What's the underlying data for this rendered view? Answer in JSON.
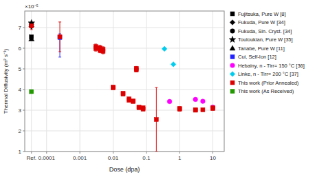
{
  "chart_data": {
    "type": "scatter",
    "x_label": "Dose (dpa)",
    "y_label": "Thermal Diffusivity (m² s⁻¹)",
    "annotations": [
      "×10⁻⁵"
    ],
    "log": "x",
    "grid": true,
    "legend": "right",
    "xlim": [
      2.2e-05,
      22
    ],
    "xticks": [
      {
        "value": 3.5e-05,
        "label": "Ref."
      },
      0.0001,
      0.001,
      0.01,
      0.1,
      1,
      10
    ],
    "ylim": [
      1e-05,
      7.8e-05
    ],
    "yticks": [
      {
        "value": 1e-05,
        "label": "1"
      },
      {
        "value": 2e-05,
        "label": "2"
      },
      {
        "value": 3e-05,
        "label": "3"
      },
      {
        "value": 4e-05,
        "label": "4"
      },
      {
        "value": 5e-05,
        "label": "5"
      },
      {
        "value": 6e-05,
        "label": "6"
      },
      {
        "value": 7e-05,
        "label": "7"
      }
    ],
    "series": [
      {
        "name": "Fujitsuka, Pure W [8]",
        "color": "#000000",
        "marker": "square",
        "x": [
          3.5e-05
        ],
        "values": [
          6.55e-05
        ]
      },
      {
        "name": "Fukuda, Pure W [34]",
        "color": "#000000",
        "marker": "diamond",
        "x": [
          3.5e-05
        ],
        "values": [
          7.05e-05
        ]
      },
      {
        "name": "Fukuda, Sin. Cryst. [34]",
        "color": "#000000",
        "marker": "circle",
        "x": [
          3.5e-05
        ],
        "values": [
          7.15e-05
        ]
      },
      {
        "name": "Touloukian, Pure W [35]",
        "color": "#000000",
        "marker": "star",
        "x": [
          3.5e-05
        ],
        "values": [
          7.22e-05
        ]
      },
      {
        "name": "Tanabe, Pure W [11]",
        "color": "#000000",
        "marker": "triangle",
        "x": [
          3.5e-05
        ],
        "values": [
          6.45e-05
        ]
      },
      {
        "name": "Cui, Self-Ion [12]",
        "color": "#2222ff",
        "marker": "square",
        "x": [
          0.00025
        ],
        "values": [
          6.52e-05
        ],
        "yerr_low": [
          9.5e-06
        ],
        "yerr_high": [
          1.8e-06
        ]
      },
      {
        "name": "Hebainy, n - Tirr= 150 °C [36]",
        "color": "#ff00ff",
        "marker": "circle",
        "x": [
          0.5,
          3,
          5,
          10
        ],
        "values": [
          3.42e-05,
          3.52e-05,
          3.43e-05,
          3.15e-05
        ]
      },
      {
        "name": "Linke, n - Tirr= 200 °C [37]",
        "color": "#00ccee",
        "marker": "diamond",
        "x": [
          0.35,
          0.65
        ],
        "values": [
          5.97e-05,
          5.22e-05
        ]
      },
      {
        "name": "This work (Prior Annealed)",
        "color": "#dd0000",
        "marker": "square",
        "x": [
          3.5e-05,
          0.00025,
          0.003,
          0.003,
          0.004,
          0.004,
          0.005,
          0.005,
          0.05,
          0.05,
          0.01,
          0.01,
          0.02,
          0.02,
          0.03,
          0.03,
          0.04,
          0.04,
          0.06,
          0.06,
          0.08,
          0.08,
          0.2,
          1,
          1,
          3,
          3,
          5,
          10,
          10
        ],
        "values": [
          7.08e-05,
          6.55e-05,
          6.08e-05,
          5.98e-05,
          6.02e-05,
          5.9e-05,
          5.95e-05,
          5.85e-05,
          5.02e-05,
          4.95e-05,
          4.12e-05,
          4.08e-05,
          3.82e-05,
          3.78e-05,
          3.55e-05,
          3.48e-05,
          3.45e-05,
          3.42e-05,
          3.15e-05,
          3.12e-05,
          3.12e-05,
          3.05e-05,
          2.55e-05,
          3.08e-05,
          3.05e-05,
          3.02e-05,
          3e-05,
          3.02e-05,
          3.12e-05,
          3.08e-05
        ],
        "yerr": [
          1.8e-06,
          7.2e-06,
          1.2e-06,
          1.2e-06,
          1.2e-06,
          1.2e-06,
          1.2e-06,
          1.2e-06,
          1e-06,
          1e-06,
          6e-07,
          6e-07,
          6e-07,
          6e-07,
          6e-07,
          6e-07,
          6e-07,
          6e-07,
          6e-07,
          6e-07,
          6e-07,
          6e-07,
          1.55e-05,
          9e-07,
          9e-07,
          7e-07,
          7e-07,
          7e-07,
          7e-07,
          7e-07
        ]
      },
      {
        "name": "This work (As Received)",
        "color": "#229900",
        "marker": "square",
        "x": [
          3.5e-05
        ],
        "values": [
          3.9e-05
        ],
        "yerr": [
          6e-07
        ]
      }
    ]
  }
}
